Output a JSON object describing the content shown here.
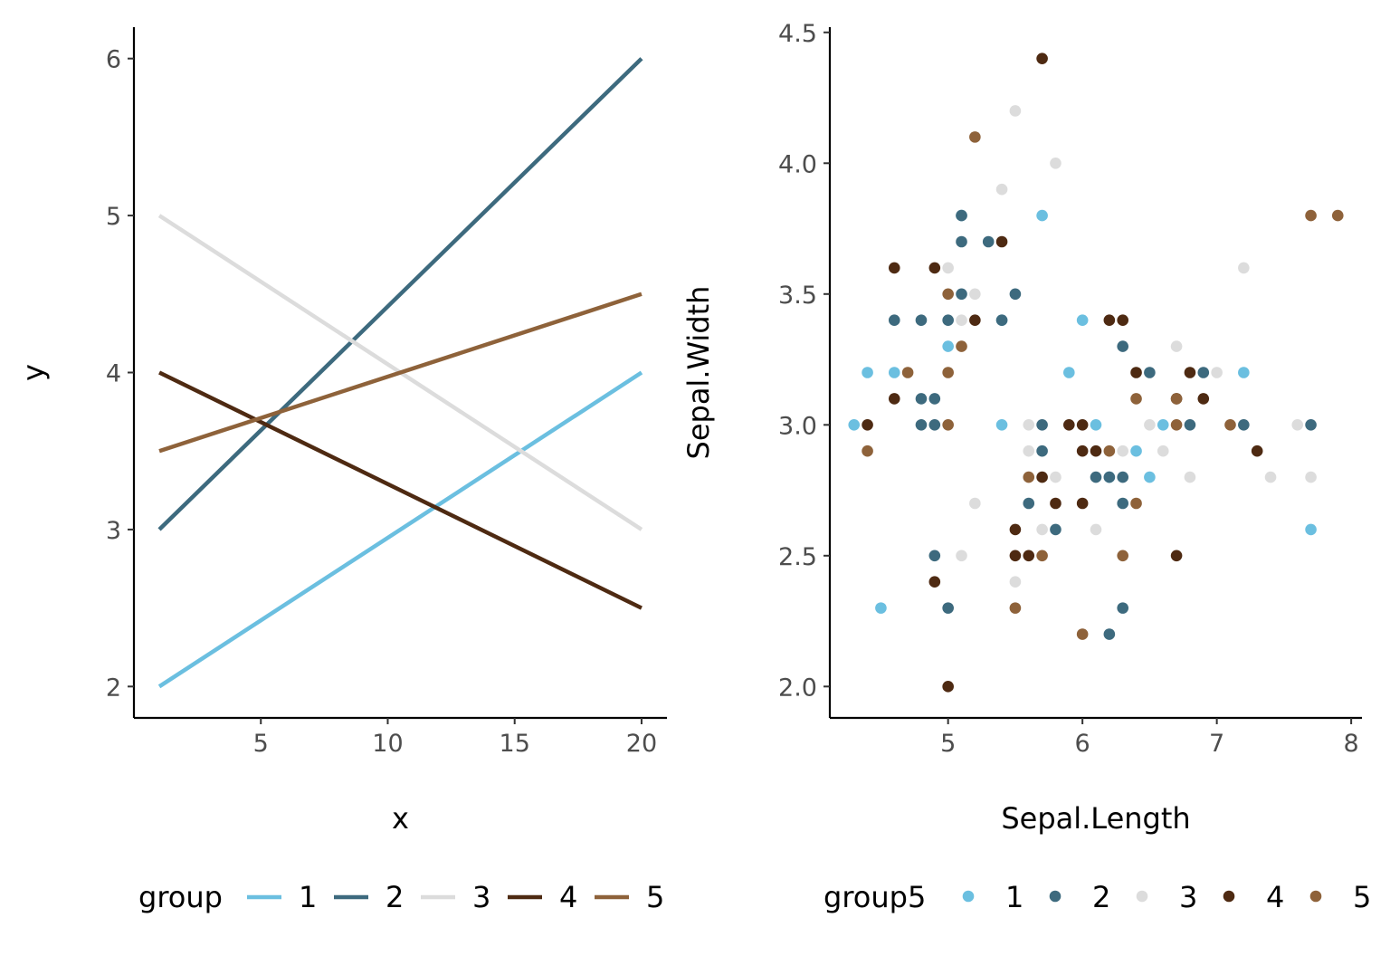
{
  "chart_data": [
    {
      "type": "line",
      "xlabel": "x",
      "ylabel": "y",
      "xlim": [
        0,
        21
      ],
      "ylim": [
        1.8,
        6.2
      ],
      "xticks": [
        5,
        10,
        15,
        20
      ],
      "yticks": [
        2,
        3,
        4,
        5,
        6
      ],
      "legend": {
        "title": "group",
        "placement": "bottom"
      },
      "series": [
        {
          "name": "1",
          "color": "#6BBFE0",
          "x": [
            1,
            20
          ],
          "y": [
            2,
            4
          ]
        },
        {
          "name": "2",
          "color": "#3D6A7E",
          "x": [
            1,
            20
          ],
          "y": [
            3,
            6
          ]
        },
        {
          "name": "3",
          "color": "#DCDCDC",
          "x": [
            1,
            20
          ],
          "y": [
            5,
            3
          ]
        },
        {
          "name": "4",
          "color": "#4E2A12",
          "x": [
            1,
            20
          ],
          "y": [
            4,
            2.5
          ]
        },
        {
          "name": "5",
          "color": "#8E623A",
          "x": [
            1,
            20
          ],
          "y": [
            3.5,
            4.5
          ]
        }
      ]
    },
    {
      "type": "scatter",
      "xlabel": "Sepal.Length",
      "ylabel": "Sepal.Width",
      "xlim": [
        4.12,
        8.08
      ],
      "ylim": [
        1.88,
        4.52
      ],
      "xticks": [
        5,
        6,
        7,
        8
      ],
      "yticks": [
        "2.0",
        "2.5",
        "3.0",
        "3.5",
        "4.0",
        "4.5"
      ],
      "legend": {
        "title": "group5",
        "placement": "bottom"
      },
      "series": [
        {
          "name": "1",
          "color": "#6BBFE0",
          "points": [
            [
              4.3,
              3.0
            ],
            [
              4.4,
              3.2
            ],
            [
              4.5,
              2.3
            ],
            [
              4.6,
              3.2
            ],
            [
              5.0,
              3.3
            ],
            [
              5.1,
              3.8
            ],
            [
              5.4,
              3.0
            ],
            [
              5.7,
              3.8
            ],
            [
              5.9,
              3.2
            ],
            [
              6.0,
              3.4
            ],
            [
              6.1,
              3.0
            ],
            [
              6.2,
              2.8
            ],
            [
              6.4,
              2.9
            ],
            [
              6.5,
              2.8
            ],
            [
              6.6,
              3.0
            ],
            [
              7.2,
              3.2
            ],
            [
              7.7,
              2.6
            ],
            [
              5.4,
              3.4
            ]
          ]
        },
        {
          "name": "2",
          "color": "#3D6A7E",
          "points": [
            [
              4.6,
              3.4
            ],
            [
              4.8,
              3.4
            ],
            [
              4.8,
              3.1
            ],
            [
              4.9,
              3.1
            ],
            [
              4.8,
              3.0
            ],
            [
              4.9,
              3.0
            ],
            [
              4.9,
              2.5
            ],
            [
              5.0,
              3.4
            ],
            [
              5.0,
              2.3
            ],
            [
              5.1,
              3.5
            ],
            [
              5.1,
              3.7
            ],
            [
              5.1,
              3.8
            ],
            [
              5.3,
              3.7
            ],
            [
              5.4,
              3.4
            ],
            [
              5.5,
              3.5
            ],
            [
              5.6,
              2.7
            ],
            [
              5.7,
              3.0
            ],
            [
              5.7,
              2.9
            ],
            [
              5.8,
              2.6
            ],
            [
              6.1,
              2.8
            ],
            [
              6.2,
              2.8
            ],
            [
              6.3,
              3.3
            ],
            [
              6.3,
              2.8
            ],
            [
              6.3,
              2.7
            ],
            [
              6.3,
              2.3
            ],
            [
              6.2,
              2.2
            ],
            [
              6.5,
              3.2
            ],
            [
              6.8,
              3.0
            ],
            [
              6.9,
              3.2
            ],
            [
              7.2,
              3.0
            ],
            [
              7.7,
              3.0
            ]
          ]
        },
        {
          "name": "3",
          "color": "#DCDCDC",
          "points": [
            [
              5.0,
              3.6
            ],
            [
              5.1,
              3.4
            ],
            [
              5.2,
              3.5
            ],
            [
              5.2,
              2.7
            ],
            [
              5.4,
              3.9
            ],
            [
              5.5,
              4.2
            ],
            [
              5.8,
              4.0
            ],
            [
              5.6,
              3.0
            ],
            [
              5.6,
              2.9
            ],
            [
              5.7,
              2.6
            ],
            [
              5.8,
              2.8
            ],
            [
              5.5,
              2.4
            ],
            [
              6.1,
              2.6
            ],
            [
              6.3,
              2.9
            ],
            [
              6.5,
              3.0
            ],
            [
              6.6,
              2.9
            ],
            [
              6.7,
              3.3
            ],
            [
              6.8,
              2.8
            ],
            [
              7.0,
              3.2
            ],
            [
              7.2,
              3.6
            ],
            [
              7.4,
              2.8
            ],
            [
              7.6,
              3.0
            ],
            [
              7.7,
              2.8
            ],
            [
              5.1,
              2.5
            ]
          ]
        },
        {
          "name": "4",
          "color": "#4E2A12",
          "points": [
            [
              4.4,
              3.0
            ],
            [
              4.6,
              3.6
            ],
            [
              4.6,
              3.1
            ],
            [
              4.9,
              3.6
            ],
            [
              4.9,
              2.4
            ],
            [
              5.0,
              2.0
            ],
            [
              5.2,
              3.4
            ],
            [
              5.4,
              3.7
            ],
            [
              5.5,
              2.6
            ],
            [
              5.5,
              2.5
            ],
            [
              5.6,
              2.5
            ],
            [
              5.7,
              2.8
            ],
            [
              5.7,
              4.4
            ],
            [
              5.8,
              2.7
            ],
            [
              5.9,
              3.0
            ],
            [
              6.0,
              3.0
            ],
            [
              6.0,
              2.9
            ],
            [
              6.0,
              2.7
            ],
            [
              6.1,
              2.9
            ],
            [
              6.2,
              3.4
            ],
            [
              6.3,
              3.4
            ],
            [
              6.4,
              3.2
            ],
            [
              6.7,
              3.1
            ],
            [
              6.7,
              2.5
            ],
            [
              6.8,
              3.2
            ],
            [
              6.9,
              3.1
            ],
            [
              7.3,
              2.9
            ]
          ]
        },
        {
          "name": "5",
          "color": "#8E623A",
          "points": [
            [
              4.4,
              2.9
            ],
            [
              4.7,
              3.2
            ],
            [
              5.0,
              3.5
            ],
            [
              5.0,
              3.2
            ],
            [
              5.0,
              3.0
            ],
            [
              5.1,
              3.3
            ],
            [
              5.2,
              4.1
            ],
            [
              5.5,
              2.3
            ],
            [
              5.6,
              2.8
            ],
            [
              5.7,
              2.5
            ],
            [
              6.0,
              2.2
            ],
            [
              6.2,
              2.9
            ],
            [
              6.3,
              2.5
            ],
            [
              6.4,
              3.1
            ],
            [
              6.4,
              2.7
            ],
            [
              6.7,
              3.1
            ],
            [
              6.7,
              3.0
            ],
            [
              7.1,
              3.0
            ],
            [
              7.7,
              3.8
            ],
            [
              7.9,
              3.8
            ]
          ]
        }
      ]
    }
  ]
}
